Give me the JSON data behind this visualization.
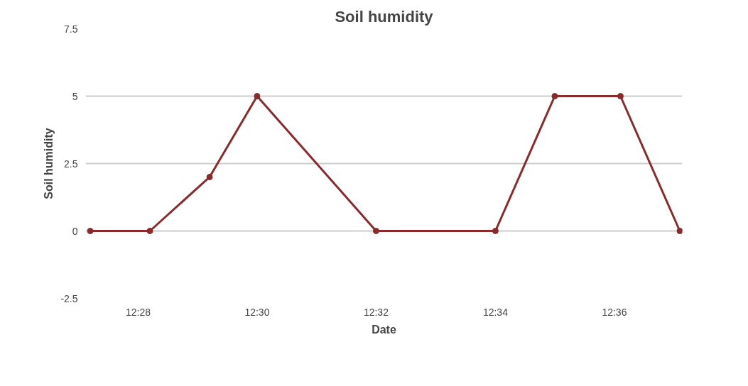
{
  "chart_data": {
    "type": "line",
    "title": "Soil humidity",
    "xlabel": "Date",
    "ylabel": "Soil humidity",
    "x": [
      12.4533,
      12.47,
      12.4867,
      12.5,
      12.5333,
      12.5667,
      12.5833,
      12.6017,
      12.6183
    ],
    "series": [
      {
        "color": "#8b2a2a",
        "values": [
          0,
          0,
          2,
          5,
          0,
          0,
          5,
          5,
          0
        ]
      }
    ],
    "xlim": [
      12.452,
      12.619
    ],
    "xticks": [
      {
        "value": 12.4667,
        "label": "12:28"
      },
      {
        "value": 12.5,
        "label": "12:30"
      },
      {
        "value": 12.5333,
        "label": "12:32"
      },
      {
        "value": 12.5667,
        "label": "12:34"
      },
      {
        "value": 12.6,
        "label": "12:36"
      }
    ],
    "ylim": [
      -2.5,
      7.5
    ],
    "yticks": [
      -2.5,
      0,
      2.5,
      5,
      7.5
    ],
    "grid": "y",
    "marker": "circle",
    "line_style": "solid"
  }
}
